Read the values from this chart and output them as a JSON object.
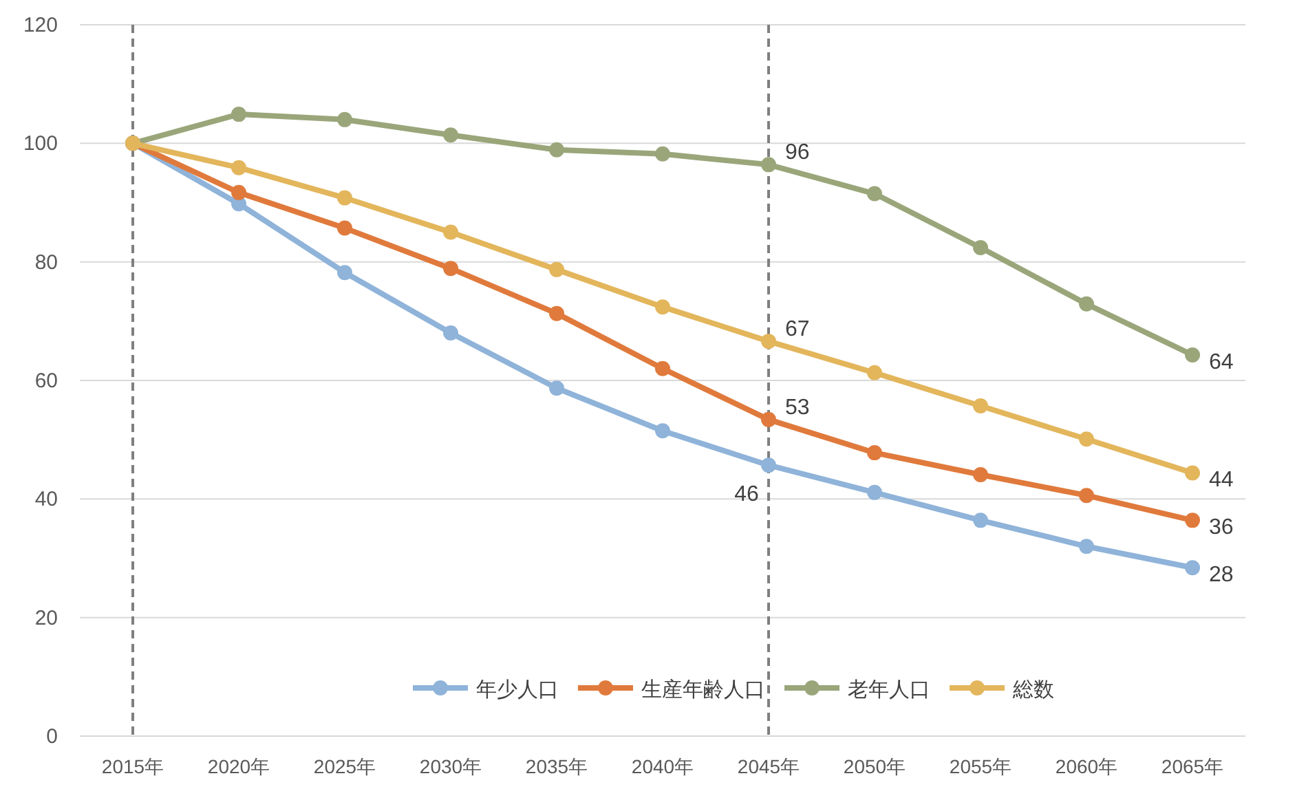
{
  "chart_data": {
    "type": "line",
    "categories": [
      "2015年",
      "2020年",
      "2025年",
      "2030年",
      "2035年",
      "2040年",
      "2045年",
      "2050年",
      "2055年",
      "2060年",
      "2065年"
    ],
    "series": [
      {
        "name": "年少人口",
        "color": "#8fb3d9",
        "values": [
          100,
          89.8,
          78.2,
          68.0,
          58.7,
          51.5,
          45.7,
          41.1,
          36.4,
          32.0,
          28.4
        ],
        "value_labels": [
          null,
          null,
          null,
          null,
          null,
          null,
          "46",
          null,
          null,
          null,
          "28"
        ]
      },
      {
        "name": "生産年齢人口",
        "color": "#e07a3c",
        "values": [
          100,
          91.7,
          85.7,
          78.9,
          71.3,
          62.0,
          53.4,
          47.8,
          44.1,
          40.6,
          36.4
        ],
        "value_labels": [
          null,
          null,
          null,
          null,
          null,
          null,
          "53",
          null,
          null,
          null,
          "36"
        ]
      },
      {
        "name": "老年人口",
        "color": "#9aa67a",
        "values": [
          100,
          104.9,
          104.0,
          101.4,
          98.9,
          98.2,
          96.4,
          91.5,
          82.4,
          72.9,
          64.3
        ],
        "value_labels": [
          null,
          null,
          null,
          null,
          null,
          null,
          "96",
          null,
          null,
          null,
          "64"
        ]
      },
      {
        "name": "総数",
        "color": "#e3b65c",
        "values": [
          100,
          95.9,
          90.8,
          85.0,
          78.7,
          72.4,
          66.6,
          61.3,
          55.7,
          50.1,
          44.4
        ],
        "value_labels": [
          null,
          null,
          null,
          null,
          null,
          null,
          "67",
          null,
          null,
          null,
          "44"
        ]
      }
    ],
    "ylim": [
      0,
      120
    ],
    "yticks": [
      0,
      20,
      40,
      60,
      80,
      100,
      120
    ],
    "grid": "y",
    "legend": "bottom",
    "marker": "circle",
    "line_style": "solid",
    "ref_lines": [
      {
        "axis": "x",
        "value": "2015年",
        "color": "#7f7f7f",
        "line_style": "dashed"
      },
      {
        "axis": "x",
        "value": "2045年",
        "color": "#7f7f7f",
        "line_style": "dashed"
      }
    ]
  }
}
